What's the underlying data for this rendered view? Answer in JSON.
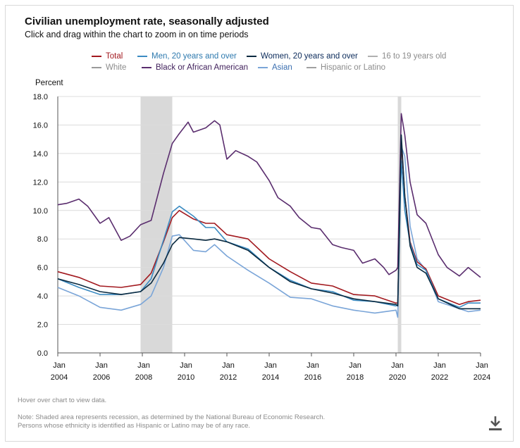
{
  "header": {
    "title": "Civilian unemployment rate, seasonally adjusted",
    "subtitle": "Click and drag within the chart to zoom in on time periods"
  },
  "footer": {
    "hover_hint": "Hover over chart to view data.",
    "note_line1": "Note: Shaded area represents recession, as determined by the National Bureau of Economic Research.",
    "note_line2": "Persons whose ethnicity is identified as Hispanic or Latino may be of any race.",
    "download_icon": "download-icon"
  },
  "chart_data": {
    "type": "line",
    "title": "Civilian unemployment rate, seasonally adjusted",
    "ylabel": "Percent",
    "xlabel": "",
    "ylim": [
      0,
      18
    ],
    "xlim": [
      "2004-01",
      "2024-01"
    ],
    "y_ticks": [
      "0.0",
      "2.0",
      "4.0",
      "6.0",
      "8.0",
      "10.0",
      "12.0",
      "14.0",
      "16.0",
      "18.0"
    ],
    "x_ticks": [
      {
        "month": "Jan",
        "year": "2004"
      },
      {
        "month": "Jan",
        "year": "2006"
      },
      {
        "month": "Jan",
        "year": "2008"
      },
      {
        "month": "Jan",
        "year": "2010"
      },
      {
        "month": "Jan",
        "year": "2012"
      },
      {
        "month": "Jan",
        "year": "2014"
      },
      {
        "month": "Jan",
        "year": "2016"
      },
      {
        "month": "Jan",
        "year": "2018"
      },
      {
        "month": "Jan",
        "year": "2020"
      },
      {
        "month": "Jan",
        "year": "2022"
      },
      {
        "month": "Jan",
        "year": "2024"
      }
    ],
    "grid": true,
    "recessions": [
      {
        "start": "2007-12",
        "end": "2009-06"
      },
      {
        "start": "2020-02",
        "end": "2020-04"
      }
    ],
    "legend_placement": "top",
    "series": [
      {
        "name": "Total",
        "color": "#a2191f",
        "x": [
          "2004-01",
          "2005-01",
          "2006-01",
          "2007-01",
          "2007-12",
          "2008-06",
          "2009-01",
          "2009-06",
          "2009-10",
          "2010-06",
          "2011-01",
          "2011-06",
          "2012-01",
          "2013-01",
          "2014-01",
          "2015-01",
          "2016-01",
          "2017-01",
          "2018-01",
          "2019-01",
          "2020-01",
          "2020-02",
          "2020-04",
          "2020-06",
          "2020-09",
          "2021-01",
          "2021-06",
          "2022-01",
          "2023-01",
          "2023-06",
          "2024-01"
        ],
        "values": [
          5.7,
          5.3,
          4.7,
          4.6,
          4.8,
          5.6,
          7.8,
          9.5,
          10.0,
          9.4,
          9.1,
          9.1,
          8.3,
          8.0,
          6.6,
          5.7,
          4.9,
          4.7,
          4.1,
          4.0,
          3.5,
          3.5,
          14.8,
          11.0,
          7.8,
          6.4,
          5.9,
          4.0,
          3.4,
          3.6,
          3.7
        ]
      },
      {
        "name": "Men, 20 years and over",
        "color": "#3b8bc2",
        "x": [
          "2004-01",
          "2005-01",
          "2006-01",
          "2007-01",
          "2007-12",
          "2008-06",
          "2009-01",
          "2009-06",
          "2009-10",
          "2010-06",
          "2011-01",
          "2011-06",
          "2012-01",
          "2013-01",
          "2014-01",
          "2015-01",
          "2016-01",
          "2017-01",
          "2018-01",
          "2019-01",
          "2020-01",
          "2020-02",
          "2020-04",
          "2020-06",
          "2020-09",
          "2021-01",
          "2021-06",
          "2022-01",
          "2023-01",
          "2023-06",
          "2024-01"
        ],
        "values": [
          5.2,
          4.6,
          4.1,
          4.1,
          4.3,
          5.2,
          7.9,
          9.9,
          10.3,
          9.6,
          8.8,
          8.8,
          7.8,
          7.3,
          6.0,
          5.1,
          4.5,
          4.3,
          3.7,
          3.6,
          3.3,
          3.4,
          13.5,
          10.0,
          7.7,
          6.2,
          5.8,
          3.8,
          3.2,
          3.5,
          3.5
        ]
      },
      {
        "name": "Women, 20 years and over",
        "color": "#0a2a40",
        "x": [
          "2004-01",
          "2005-01",
          "2006-01",
          "2007-01",
          "2007-12",
          "2008-06",
          "2009-01",
          "2009-06",
          "2009-10",
          "2010-06",
          "2011-01",
          "2011-06",
          "2012-01",
          "2013-01",
          "2014-01",
          "2015-01",
          "2016-01",
          "2017-01",
          "2018-01",
          "2019-01",
          "2020-01",
          "2020-02",
          "2020-04",
          "2020-06",
          "2020-09",
          "2021-01",
          "2021-06",
          "2022-01",
          "2023-01",
          "2023-06",
          "2024-01"
        ],
        "values": [
          5.2,
          4.8,
          4.3,
          4.1,
          4.3,
          4.9,
          6.3,
          7.6,
          8.1,
          8.0,
          7.9,
          8.0,
          7.8,
          7.2,
          6.0,
          5.0,
          4.5,
          4.2,
          3.8,
          3.6,
          3.4,
          3.3,
          15.3,
          11.0,
          7.5,
          6.0,
          5.6,
          3.8,
          3.1,
          3.1,
          3.1
        ]
      },
      {
        "name": "16 to 19 years old",
        "color": "#a0a0a0",
        "hidden": true,
        "values": []
      },
      {
        "name": "White",
        "color": "#8c8c8c",
        "hidden": true,
        "values": []
      },
      {
        "name": "Black or African American",
        "color": "#5a2d6e",
        "x": [
          "2004-01",
          "2004-06",
          "2005-01",
          "2005-06",
          "2006-01",
          "2006-06",
          "2007-01",
          "2007-06",
          "2007-12",
          "2008-06",
          "2009-01",
          "2009-06",
          "2009-10",
          "2010-03",
          "2010-06",
          "2011-01",
          "2011-06",
          "2011-09",
          "2012-01",
          "2012-06",
          "2013-01",
          "2013-06",
          "2014-01",
          "2014-06",
          "2015-01",
          "2015-06",
          "2016-01",
          "2016-06",
          "2017-01",
          "2017-06",
          "2018-01",
          "2018-06",
          "2019-01",
          "2019-06",
          "2019-09",
          "2020-01",
          "2020-02",
          "2020-04",
          "2020-06",
          "2020-09",
          "2021-01",
          "2021-06",
          "2022-01",
          "2022-06",
          "2023-01",
          "2023-06",
          "2023-09",
          "2024-01"
        ],
        "values": [
          10.4,
          10.5,
          10.8,
          10.3,
          9.1,
          9.5,
          7.9,
          8.2,
          9.0,
          9.3,
          12.6,
          14.7,
          15.4,
          16.2,
          15.5,
          15.8,
          16.3,
          16.0,
          13.6,
          14.2,
          13.8,
          13.4,
          12.1,
          10.9,
          10.3,
          9.5,
          8.8,
          8.7,
          7.6,
          7.4,
          7.2,
          6.3,
          6.6,
          6.0,
          5.5,
          5.8,
          6.0,
          16.8,
          15.3,
          12.0,
          9.7,
          9.1,
          6.9,
          6.0,
          5.4,
          6.0,
          5.7,
          5.3
        ]
      },
      {
        "name": "Asian",
        "color": "#7aa5d8",
        "x": [
          "2004-01",
          "2005-01",
          "2006-01",
          "2007-01",
          "2007-12",
          "2008-06",
          "2009-01",
          "2009-06",
          "2009-10",
          "2010-06",
          "2011-01",
          "2011-06",
          "2012-01",
          "2013-01",
          "2014-01",
          "2015-01",
          "2016-01",
          "2017-01",
          "2018-01",
          "2019-01",
          "2020-01",
          "2020-02",
          "2020-04",
          "2020-06",
          "2020-09",
          "2021-01",
          "2021-06",
          "2022-01",
          "2023-01",
          "2023-06",
          "2024-01"
        ],
        "values": [
          4.6,
          4.0,
          3.2,
          3.0,
          3.4,
          4.0,
          6.0,
          8.2,
          8.3,
          7.2,
          7.1,
          7.6,
          6.8,
          5.8,
          4.9,
          3.9,
          3.8,
          3.3,
          3.0,
          2.8,
          3.0,
          2.5,
          14.5,
          13.8,
          8.9,
          6.6,
          5.8,
          3.6,
          3.1,
          2.9,
          3.0
        ]
      },
      {
        "name": "Hispanic or Latino",
        "color": "#a0a0a0",
        "hidden": true,
        "values": []
      }
    ]
  }
}
